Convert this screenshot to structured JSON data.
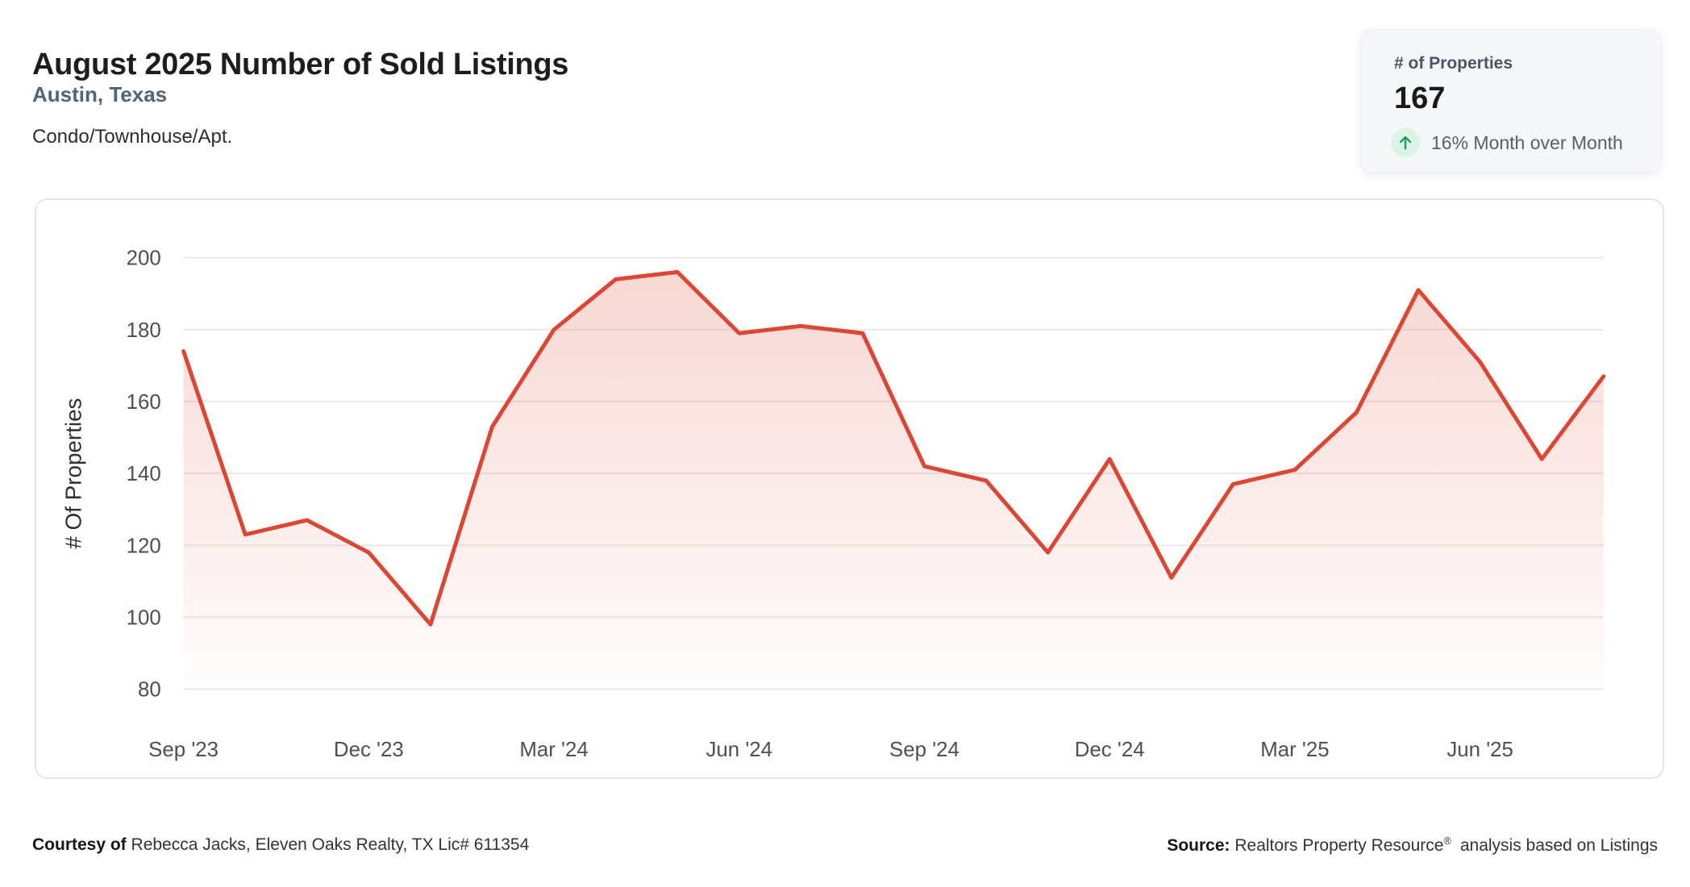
{
  "header": {
    "title": "August 2025 Number of Sold Listings",
    "location": "Austin, Texas",
    "property_type": "Condo/Townhouse/Apt."
  },
  "stat_card": {
    "label": "# of Properties",
    "value": "167",
    "delta_direction": "up",
    "delta_text": "16% Month over Month"
  },
  "chart_data": {
    "type": "area",
    "title": "August 2025 Number of Sold Listings",
    "x": [
      "Sep '23",
      "Oct '23",
      "Nov '23",
      "Dec '23",
      "Jan '24",
      "Feb '24",
      "Mar '24",
      "Apr '24",
      "May '24",
      "Jun '24",
      "Jul '24",
      "Aug '24",
      "Sep '24",
      "Oct '24",
      "Nov '24",
      "Dec '24",
      "Jan '25",
      "Feb '25",
      "Mar '25",
      "Apr '25",
      "May '25",
      "Jun '25",
      "Jul '25",
      "Aug '25"
    ],
    "values": [
      174,
      123,
      127,
      118,
      98,
      153,
      180,
      194,
      196,
      179,
      181,
      179,
      142,
      138,
      118,
      144,
      111,
      137,
      141,
      157,
      191,
      171,
      144,
      167
    ],
    "xtick_labels": [
      "Sep '23",
      "Dec '23",
      "Mar '24",
      "Jun '24",
      "Sep '24",
      "Dec '24",
      "Mar '25",
      "Jun '25"
    ],
    "xtick_every": 3,
    "yticks": [
      200,
      180,
      160,
      140,
      120,
      100,
      80
    ],
    "ylim": [
      80,
      200
    ],
    "ylabel": "# Of Properties",
    "xlabel": "",
    "grid": true,
    "legend": false
  },
  "footer": {
    "courtesy_label": "Courtesy of",
    "courtesy_text": "Rebecca Jacks, Eleven Oaks Realty, TX Lic# 611354",
    "source_label": "Source:",
    "source_text": "Realtors Property Resource",
    "source_reg": "®",
    "source_text_after": "analysis based on Listings"
  },
  "colors": {
    "line": "#dc4632",
    "area_top": "rgba(220,70,50,0.22)",
    "area_bottom": "rgba(220,70,50,0.01)",
    "grid": "#e9e9e9",
    "subtitle_accent": "#4f657c",
    "delta_green": "#18a15d",
    "delta_green_bg": "#dcf3e7"
  }
}
